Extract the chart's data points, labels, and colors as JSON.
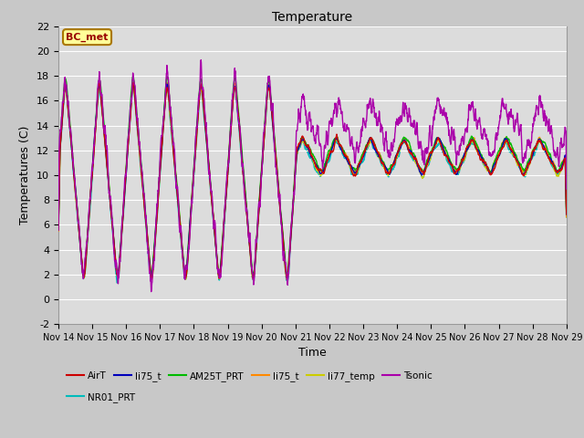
{
  "title": "Temperature",
  "xlabel": "Time",
  "ylabel": "Temperatures (C)",
  "ylim": [
    -2,
    22
  ],
  "xlim": [
    0,
    15
  ],
  "fig_bg": "#c8c8c8",
  "plot_bg": "#dcdcdc",
  "x_tick_labels": [
    "Nov 14",
    "Nov 15",
    "Nov 16",
    "Nov 17",
    "Nov 18",
    "Nov 19",
    "Nov 20",
    "Nov 21",
    "Nov 22",
    "Nov 23",
    "Nov 24",
    "Nov 25",
    "Nov 26",
    "Nov 27",
    "Nov 28",
    "Nov 29"
  ],
  "series": {
    "AirT": {
      "color": "#cc0000",
      "lw": 1.0
    },
    "li75_t_blue": {
      "color": "#0000bb",
      "lw": 1.0
    },
    "AM25T_PRT": {
      "color": "#00bb00",
      "lw": 1.0
    },
    "li75_t_orange": {
      "color": "#ff8800",
      "lw": 1.0
    },
    "li77_temp": {
      "color": "#cccc00",
      "lw": 1.0
    },
    "Tsonic": {
      "color": "#aa00aa",
      "lw": 1.0
    },
    "NR01_PRT": {
      "color": "#00bbbb",
      "lw": 1.2
    }
  },
  "annotation_text": "BC_met",
  "annotation_color": "#990000",
  "annotation_bg": "#ffff99",
  "annotation_border": "#aa7700",
  "legend_labels": [
    "AirT",
    "li75_t",
    "AM25T_PRT",
    "li75_t",
    "li77_temp",
    "Tsonic",
    "NR01_PRT"
  ],
  "legend_colors": [
    "#cc0000",
    "#0000bb",
    "#00bb00",
    "#ff8800",
    "#cccc00",
    "#aa00aa",
    "#00bbbb"
  ]
}
